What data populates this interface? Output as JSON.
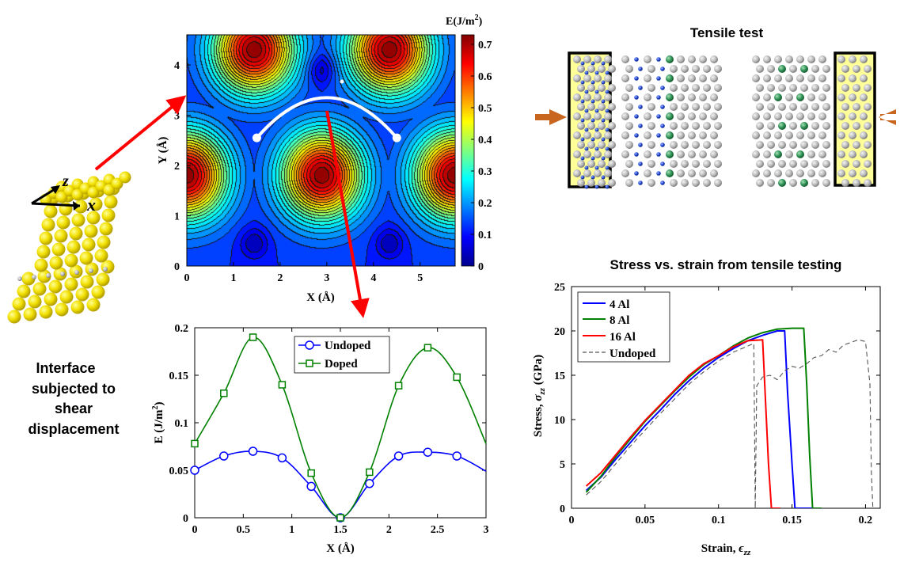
{
  "figure": {
    "left_panel": {
      "caption_lines": [
        "Interface",
        "subjected to",
        "shear",
        "displacement"
      ],
      "axis_z": "z",
      "axis_x": "x"
    },
    "tensile": {
      "title": "Tensile test"
    }
  },
  "chart_data": [
    {
      "type": "heatmap",
      "title": "",
      "xlabel": "X (Å)",
      "ylabel": "Y (Å)",
      "xlim": [
        0,
        5.75
      ],
      "ylim": [
        0,
        4.6
      ],
      "xticks": [
        0,
        1,
        2,
        3,
        4,
        5
      ],
      "yticks": [
        0,
        1,
        2,
        3,
        4
      ],
      "colorbar": {
        "label": "E(J/m",
        "label_sup": "2",
        "label_end": ")",
        "range": [
          0,
          0.73
        ],
        "ticks": [
          0,
          0.1,
          0.2,
          0.3,
          0.4,
          0.5,
          0.6,
          0.7
        ],
        "tick_labels": [
          "0",
          "0.1",
          "0.2",
          "0.3",
          "0.4",
          "0.5",
          "0.6",
          "0.7"
        ]
      },
      "maxima": [
        [
          1.45,
          4.3
        ],
        [
          4.35,
          4.3
        ],
        [
          0,
          1.8
        ],
        [
          2.9,
          1.8
        ],
        [
          5.75,
          1.8
        ]
      ],
      "minima": [
        [
          2.9,
          3.9
        ],
        [
          1.45,
          0.45
        ],
        [
          4.35,
          0.45
        ]
      ],
      "path_start": [
        1.5,
        2.55
      ],
      "path_end": [
        4.5,
        2.55
      ],
      "path_apex": [
        3.0,
        3.35
      ]
    },
    {
      "type": "line",
      "title": "",
      "xlabel": "X (Å)",
      "ylabel": "E (J/m",
      "ylabel_sup": "2",
      "ylabel_end": ")",
      "xlim": [
        0,
        3
      ],
      "ylim": [
        0,
        0.2
      ],
      "xticks": [
        0,
        0.5,
        1,
        1.5,
        2,
        2.5,
        3
      ],
      "xtick_labels": [
        "0",
        "0.5",
        "1",
        "1.5",
        "2",
        "2.5",
        "3"
      ],
      "yticks": [
        0,
        0.05,
        0.1,
        0.15,
        0.2
      ],
      "ytick_labels": [
        "0",
        "0.05",
        "0.1",
        "0.15",
        "0.2"
      ],
      "legend": "top-center",
      "series": [
        {
          "name": "Undoped",
          "color": "#0000ff",
          "marker": "circle",
          "x": [
            0,
            0.3,
            0.6,
            0.9,
            1.2,
            1.5,
            1.8,
            2.1,
            2.4,
            2.7
          ],
          "y": [
            0.05,
            0.065,
            0.07,
            0.063,
            0.033,
            0.0,
            0.036,
            0.065,
            0.069,
            0.065
          ],
          "curve_x": [
            0,
            0.3,
            0.6,
            0.9,
            1.2,
            1.5,
            1.8,
            2.1,
            2.4,
            2.7,
            3.0
          ],
          "curve_y": [
            0.05,
            0.065,
            0.07,
            0.063,
            0.033,
            0.0,
            0.036,
            0.065,
            0.069,
            0.065,
            0.049
          ]
        },
        {
          "name": "Doped",
          "color": "#008000",
          "marker": "square",
          "x": [
            0,
            0.3,
            0.6,
            0.9,
            1.2,
            1.5,
            1.8,
            2.1,
            2.4,
            2.7
          ],
          "y": [
            0.078,
            0.131,
            0.19,
            0.14,
            0.047,
            0.0,
            0.048,
            0.139,
            0.179,
            0.148
          ],
          "curve_x": [
            0,
            0.3,
            0.6,
            0.9,
            1.2,
            1.5,
            1.8,
            2.1,
            2.4,
            2.7,
            3.0
          ],
          "curve_y": [
            0.078,
            0.131,
            0.19,
            0.14,
            0.047,
            0.0,
            0.048,
            0.139,
            0.179,
            0.148,
            0.078
          ]
        }
      ]
    },
    {
      "type": "line",
      "title": "Stress vs. strain from tensile testing",
      "xlabel": "Strain, ",
      "xlabel_sym": "ϵ",
      "xlabel_sub": "zz",
      "ylabel": "Stress, ",
      "ylabel_sym": "σ",
      "ylabel_sub": "zz",
      "ylabel_end": " (GPa)",
      "xlim": [
        0,
        0.21
      ],
      "ylim": [
        0,
        25
      ],
      "xticks": [
        0,
        0.05,
        0.1,
        0.15,
        0.2
      ],
      "xtick_labels": [
        "0",
        "0.05",
        "0.1",
        "0.15",
        "0.2"
      ],
      "yticks": [
        0,
        5,
        10,
        15,
        20,
        25
      ],
      "ytick_labels": [
        "0",
        "5",
        "10",
        "15",
        "20",
        "25"
      ],
      "legend": "top-left",
      "series": [
        {
          "name": "4 Al",
          "color": "#0000ff",
          "x": [
            0.01,
            0.02,
            0.03,
            0.04,
            0.05,
            0.06,
            0.07,
            0.08,
            0.09,
            0.1,
            0.11,
            0.12,
            0.13,
            0.14,
            0.145,
            0.147,
            0.15,
            0.152,
            0.165
          ],
          "y": [
            2.0,
            3.5,
            5.5,
            7.4,
            9.3,
            11.0,
            12.8,
            14.4,
            15.8,
            17.0,
            18.0,
            18.9,
            19.5,
            20.0,
            20.0,
            13.0,
            5.0,
            0.0,
            0.0
          ]
        },
        {
          "name": "8 Al",
          "color": "#008000",
          "x": [
            0.01,
            0.02,
            0.03,
            0.04,
            0.05,
            0.06,
            0.07,
            0.08,
            0.09,
            0.1,
            0.11,
            0.12,
            0.13,
            0.14,
            0.15,
            0.158,
            0.16,
            0.162,
            0.164,
            0.17
          ],
          "y": [
            1.8,
            3.6,
            5.8,
            7.8,
            9.8,
            11.5,
            13.2,
            14.8,
            16.2,
            17.2,
            18.3,
            19.2,
            19.8,
            20.2,
            20.3,
            20.3,
            14.0,
            6.0,
            0.0,
            0.0
          ]
        },
        {
          "name": "16 Al",
          "color": "#ff0000",
          "x": [
            0.01,
            0.02,
            0.03,
            0.04,
            0.05,
            0.06,
            0.07,
            0.08,
            0.09,
            0.1,
            0.11,
            0.12,
            0.13,
            0.132,
            0.134,
            0.136,
            0.142
          ],
          "y": [
            2.5,
            4.0,
            6.0,
            8.0,
            9.9,
            11.6,
            13.3,
            15.0,
            16.3,
            17.2,
            18.2,
            18.9,
            19.0,
            12.0,
            5.0,
            0.0,
            0.0
          ]
        },
        {
          "name": "Undoped",
          "color": "#555555",
          "dashed": true,
          "x": [
            0.01,
            0.02,
            0.03,
            0.04,
            0.05,
            0.06,
            0.07,
            0.08,
            0.09,
            0.1,
            0.11,
            0.12,
            0.124,
            0.125,
            0.126,
            0.13,
            0.135,
            0.14,
            0.145,
            0.15,
            0.155,
            0.16,
            0.165,
            0.17,
            0.175,
            0.18,
            0.185,
            0.19,
            0.195,
            0.2,
            0.203,
            0.204,
            0.205
          ],
          "y": [
            1.5,
            3.0,
            5.0,
            7.0,
            8.8,
            10.6,
            12.3,
            14.0,
            15.4,
            16.6,
            17.6,
            18.3,
            18.6,
            0.0,
            13.8,
            14.8,
            15.0,
            14.5,
            15.5,
            16.0,
            15.8,
            16.3,
            17.0,
            17.2,
            17.9,
            17.6,
            18.4,
            18.7,
            19.0,
            18.8,
            14.0,
            4.0,
            0.0
          ]
        }
      ]
    }
  ]
}
